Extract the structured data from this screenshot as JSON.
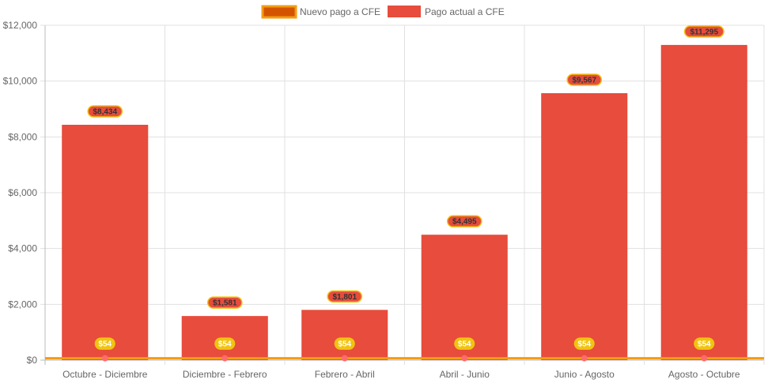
{
  "chart_data": {
    "type": "bar",
    "title": "",
    "xlabel": "",
    "ylabel": "",
    "ylim": [
      0,
      12000
    ],
    "yticks": [
      0,
      2000,
      4000,
      6000,
      8000,
      10000,
      12000
    ],
    "ytick_labels": [
      "$0",
      "$2,000",
      "$4,000",
      "$6,000",
      "$8,000",
      "$10,000",
      "$12,000"
    ],
    "grid": true,
    "legend_position": "top-center",
    "categories": [
      "Octubre - Diciembre",
      "Diciembre - Febrero",
      "Febrero - Abril",
      "Abril - Junio",
      "Junio - Agosto",
      "Agosto - Octubre"
    ],
    "series": [
      {
        "name": "Nuevo pago a CFE",
        "type": "line",
        "color": "#d35400",
        "border_color": "#f39c12",
        "point_color": "#ff6b6b",
        "values": [
          54,
          54,
          54,
          54,
          54,
          54
        ],
        "labels": [
          "$54",
          "$54",
          "$54",
          "$54",
          "$54",
          "$54"
        ]
      },
      {
        "name": "Pago actual a CFE",
        "type": "bar",
        "color": "#e74c3c",
        "values": [
          8434,
          1581,
          1801,
          4495,
          9567,
          11295
        ],
        "labels": [
          "$8,434",
          "$1,581",
          "$1,801",
          "$4,495",
          "$9,567",
          "$11,295"
        ]
      }
    ]
  }
}
